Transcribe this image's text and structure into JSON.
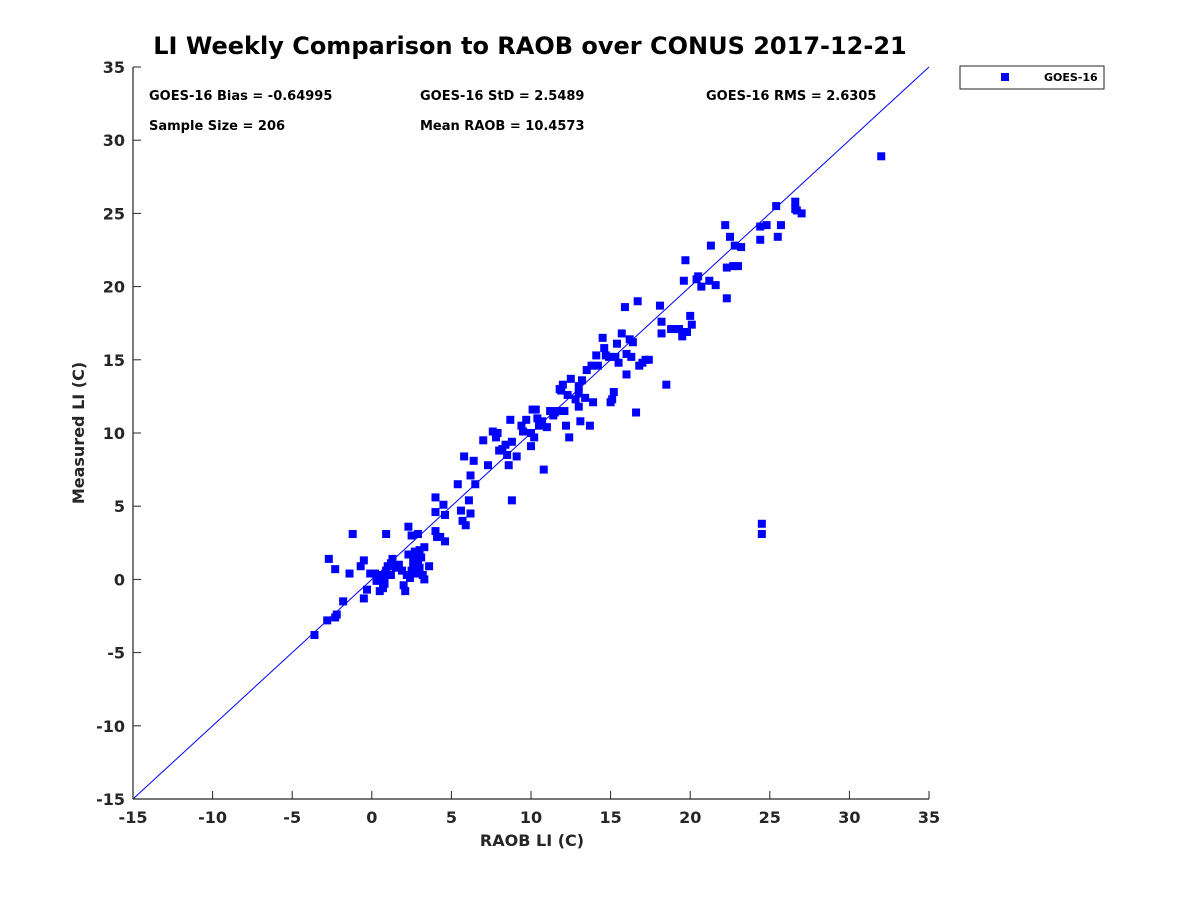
{
  "chart_data": {
    "type": "scatter",
    "title": "LI Weekly Comparison to RAOB over CONUS 2017-12-21",
    "xlabel": "RAOB LI (C)",
    "ylabel": "Measured LI (C)",
    "xlim": [
      -15,
      35
    ],
    "ylim": [
      -15,
      35
    ],
    "xticks": [
      -15,
      -10,
      -5,
      0,
      5,
      10,
      15,
      20,
      25,
      30,
      35
    ],
    "yticks": [
      -15,
      -10,
      -5,
      0,
      5,
      10,
      15,
      20,
      25,
      30,
      35
    ],
    "grid": false,
    "legend": {
      "location": "outside-top-right",
      "entries": [
        "GOES-16"
      ]
    },
    "reference_line": {
      "label": "1:1",
      "from": [
        -15,
        -15
      ],
      "to": [
        35,
        35
      ]
    },
    "stats": {
      "bias": "GOES-16 Bias = -0.64995",
      "std": "GOES-16 StD = 2.5489",
      "rms": "GOES-16 RMS = 2.6305",
      "sample": "Sample Size = 206",
      "mean": "Mean RAOB = 10.4573"
    },
    "series": [
      {
        "name": "GOES-16",
        "color": "#0000ff",
        "marker": "square",
        "points": [
          [
            -3.6,
            -3.8
          ],
          [
            -2.8,
            -2.8
          ],
          [
            -2.2,
            -2.4
          ],
          [
            -2.3,
            -2.6
          ],
          [
            -1.8,
            -1.5
          ],
          [
            -2.7,
            1.4
          ],
          [
            -2.3,
            0.7
          ],
          [
            -1.4,
            0.4
          ],
          [
            -1.2,
            3.1
          ],
          [
            -0.7,
            0.9
          ],
          [
            -0.5,
            1.3
          ],
          [
            -0.5,
            -1.3
          ],
          [
            -0.3,
            -0.7
          ],
          [
            -0.1,
            0.4
          ],
          [
            0.2,
            0.4
          ],
          [
            0.3,
            -0.1
          ],
          [
            0.5,
            -0.8
          ],
          [
            0.5,
            0.3
          ],
          [
            0.7,
            -0.6
          ],
          [
            0.8,
            0.1
          ],
          [
            0.8,
            -0.3
          ],
          [
            0.9,
            0.6
          ],
          [
            0.9,
            3.1
          ],
          [
            1.0,
            0.9
          ],
          [
            1.2,
            1.1
          ],
          [
            1.2,
            0.3
          ],
          [
            1.3,
            1.4
          ],
          [
            1.5,
            0.8
          ],
          [
            1.7,
            1.0
          ],
          [
            1.9,
            0.6
          ],
          [
            2.0,
            -0.4
          ],
          [
            2.1,
            -0.8
          ],
          [
            2.2,
            0.3
          ],
          [
            2.3,
            1.7
          ],
          [
            2.3,
            3.6
          ],
          [
            2.4,
            0.1
          ],
          [
            2.5,
            3.0
          ],
          [
            2.5,
            0.6
          ],
          [
            2.6,
            1.3
          ],
          [
            2.6,
            0.8
          ],
          [
            2.7,
            1.9
          ],
          [
            2.8,
            0.4
          ],
          [
            2.8,
            1.5
          ],
          [
            2.9,
            3.1
          ],
          [
            2.9,
            1.1
          ],
          [
            3.0,
            2.0
          ],
          [
            3.0,
            0.8
          ],
          [
            3.1,
            1.5
          ],
          [
            3.2,
            0.3
          ],
          [
            3.3,
            0.0
          ],
          [
            3.3,
            2.2
          ],
          [
            3.6,
            0.9
          ],
          [
            4.0,
            5.6
          ],
          [
            4.0,
            4.6
          ],
          [
            4.1,
            2.9
          ],
          [
            4.0,
            3.3
          ],
          [
            4.3,
            2.9
          ],
          [
            4.5,
            5.1
          ],
          [
            4.6,
            4.4
          ],
          [
            4.6,
            2.6
          ],
          [
            5.4,
            6.5
          ],
          [
            5.6,
            4.7
          ],
          [
            5.7,
            4.0
          ],
          [
            5.8,
            8.4
          ],
          [
            5.9,
            3.7
          ],
          [
            6.1,
            5.4
          ],
          [
            6.2,
            7.1
          ],
          [
            6.2,
            4.5
          ],
          [
            6.4,
            8.1
          ],
          [
            6.5,
            6.5
          ],
          [
            7.0,
            9.5
          ],
          [
            7.3,
            7.8
          ],
          [
            7.6,
            10.1
          ],
          [
            7.8,
            9.7
          ],
          [
            7.9,
            10.0
          ],
          [
            8.0,
            8.8
          ],
          [
            8.2,
            8.9
          ],
          [
            8.4,
            9.2
          ],
          [
            8.5,
            8.5
          ],
          [
            8.6,
            7.8
          ],
          [
            8.7,
            10.9
          ],
          [
            8.8,
            9.4
          ],
          [
            8.8,
            5.4
          ],
          [
            9.1,
            8.4
          ],
          [
            9.4,
            10.5
          ],
          [
            9.5,
            10.1
          ],
          [
            9.7,
            10.9
          ],
          [
            10.0,
            9.1
          ],
          [
            10.0,
            10.0
          ],
          [
            10.1,
            11.6
          ],
          [
            10.2,
            9.7
          ],
          [
            10.3,
            11.6
          ],
          [
            10.4,
            11.0
          ],
          [
            10.5,
            10.5
          ],
          [
            10.7,
            10.8
          ],
          [
            10.8,
            7.5
          ],
          [
            11.0,
            10.4
          ],
          [
            11.2,
            11.5
          ],
          [
            11.4,
            11.2
          ],
          [
            11.5,
            11.4
          ],
          [
            11.7,
            11.5
          ],
          [
            11.8,
            13.0
          ],
          [
            11.9,
            12.9
          ],
          [
            12.0,
            13.3
          ],
          [
            12.1,
            11.5
          ],
          [
            12.2,
            10.5
          ],
          [
            12.3,
            12.6
          ],
          [
            12.4,
            9.7
          ],
          [
            12.5,
            13.7
          ],
          [
            12.8,
            12.3
          ],
          [
            13.0,
            11.8
          ],
          [
            13.0,
            13.2
          ],
          [
            13.0,
            12.7
          ],
          [
            13.1,
            10.8
          ],
          [
            13.2,
            13.6
          ],
          [
            13.4,
            12.4
          ],
          [
            13.5,
            14.3
          ],
          [
            13.7,
            10.5
          ],
          [
            13.8,
            14.6
          ],
          [
            13.9,
            12.1
          ],
          [
            14.1,
            15.3
          ],
          [
            14.2,
            14.6
          ],
          [
            14.5,
            16.5
          ],
          [
            14.6,
            15.8
          ],
          [
            14.7,
            15.3
          ],
          [
            14.9,
            15.2
          ],
          [
            15.0,
            12.1
          ],
          [
            15.1,
            12.3
          ],
          [
            15.2,
            12.8
          ],
          [
            15.3,
            15.2
          ],
          [
            15.4,
            16.1
          ],
          [
            15.5,
            14.8
          ],
          [
            15.7,
            16.8
          ],
          [
            15.9,
            18.6
          ],
          [
            16.0,
            15.4
          ],
          [
            16.0,
            14.0
          ],
          [
            16.2,
            16.4
          ],
          [
            16.3,
            15.2
          ],
          [
            16.4,
            16.2
          ],
          [
            16.6,
            11.4
          ],
          [
            16.7,
            19.0
          ],
          [
            16.8,
            14.6
          ],
          [
            17.0,
            14.8
          ],
          [
            17.2,
            15.0
          ],
          [
            17.4,
            15.0
          ],
          [
            18.1,
            18.7
          ],
          [
            18.2,
            17.6
          ],
          [
            18.2,
            16.8
          ],
          [
            18.5,
            13.3
          ],
          [
            18.8,
            17.1
          ],
          [
            19.0,
            17.1
          ],
          [
            19.3,
            17.1
          ],
          [
            19.5,
            16.6
          ],
          [
            19.6,
            20.4
          ],
          [
            19.7,
            21.8
          ],
          [
            19.8,
            16.9
          ],
          [
            20.0,
            18.0
          ],
          [
            20.1,
            17.4
          ],
          [
            20.4,
            20.5
          ],
          [
            20.5,
            20.7
          ],
          [
            20.7,
            20.0
          ],
          [
            21.2,
            20.4
          ],
          [
            21.3,
            22.8
          ],
          [
            21.6,
            20.1
          ],
          [
            22.2,
            24.2
          ],
          [
            22.3,
            19.2
          ],
          [
            22.3,
            21.3
          ],
          [
            22.5,
            23.4
          ],
          [
            22.7,
            21.4
          ],
          [
            22.8,
            22.8
          ],
          [
            23.0,
            21.4
          ],
          [
            23.2,
            22.7
          ],
          [
            24.4,
            24.1
          ],
          [
            24.4,
            23.2
          ],
          [
            24.5,
            3.8
          ],
          [
            24.5,
            3.1
          ],
          [
            24.8,
            24.2
          ],
          [
            25.4,
            25.5
          ],
          [
            25.5,
            23.4
          ],
          [
            25.7,
            24.2
          ],
          [
            26.6,
            25.8
          ],
          [
            26.6,
            25.3
          ],
          [
            26.7,
            25.2
          ],
          [
            27.0,
            25.0
          ],
          [
            32.0,
            28.9
          ]
        ]
      }
    ]
  }
}
